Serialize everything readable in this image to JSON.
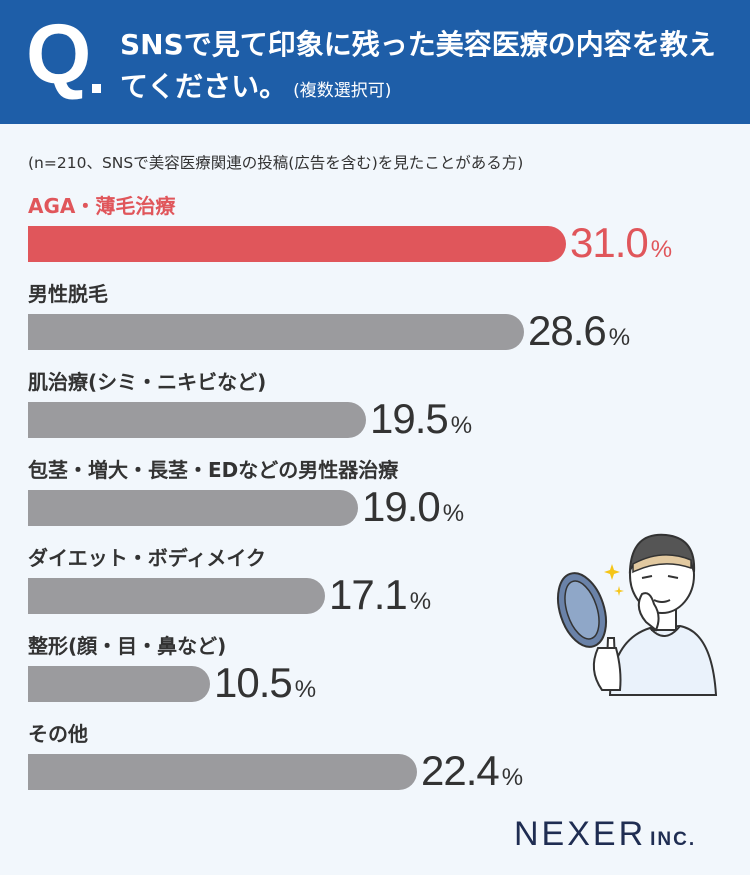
{
  "header": {
    "q_mark": "Q",
    "question": "SNSで見て印象に残った美容医療の内容を教えてください。",
    "note": "(複数選択可)"
  },
  "sample_note": "(n=210、SNSで美容医療関連の投稿(広告を含む)を見たことがある方)",
  "chart_data": {
    "type": "bar",
    "orientation": "horizontal",
    "unit": "%",
    "categories": [
      "AGA・薄毛治療",
      "男性脱毛",
      "肌治療(シミ・ニキビなど)",
      "包茎・増大・長茎・EDなどの男性器治療",
      "ダイエット・ボディメイク",
      "整形(顔・目・鼻など)",
      "その他"
    ],
    "values": [
      31.0,
      28.6,
      19.5,
      19.0,
      17.1,
      10.5,
      22.4
    ],
    "value_labels": [
      "31.0",
      "28.6",
      "19.5",
      "19.0",
      "17.1",
      "10.5",
      "22.4"
    ],
    "highlight_index": 0,
    "colors": {
      "highlight": "#e0565b",
      "default": "#9b9b9e"
    }
  },
  "logo": {
    "name": "NEXER",
    "suffix": "INC."
  },
  "illustration": {
    "icon": "man-with-hand-mirror-illustration"
  }
}
